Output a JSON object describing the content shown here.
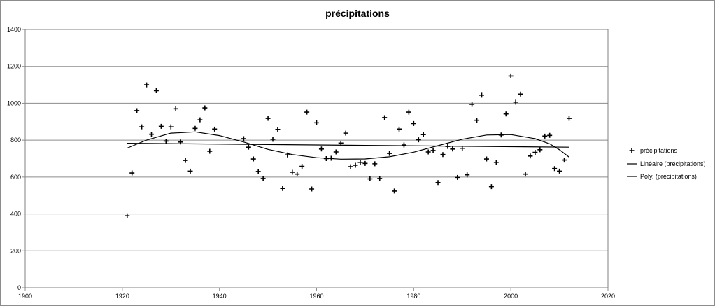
{
  "chart_data": {
    "type": "scatter",
    "title": "précipitations",
    "xlim": [
      1900,
      2020
    ],
    "ylim": [
      0,
      1400
    ],
    "x_ticks": [
      1900,
      1920,
      1940,
      1960,
      1980,
      2000,
      2020
    ],
    "y_ticks": [
      0,
      200,
      400,
      600,
      800,
      1000,
      1200,
      1400
    ],
    "grid": "horizontal",
    "legend_position": "right",
    "marker_color": "#000000",
    "line_color": "#000000",
    "series": [
      {
        "name": "précipitations",
        "kind": "scatter",
        "marker": "cross",
        "points": [
          [
            1921,
            390
          ],
          [
            1922,
            622
          ],
          [
            1923,
            960
          ],
          [
            1924,
            872
          ],
          [
            1925,
            1100
          ],
          [
            1926,
            832
          ],
          [
            1927,
            1068
          ],
          [
            1928,
            875
          ],
          [
            1929,
            795
          ],
          [
            1930,
            872
          ],
          [
            1931,
            970
          ],
          [
            1932,
            790
          ],
          [
            1933,
            690
          ],
          [
            1934,
            632
          ],
          [
            1935,
            864
          ],
          [
            1936,
            910
          ],
          [
            1937,
            975
          ],
          [
            1938,
            740
          ],
          [
            1939,
            860
          ],
          [
            1945,
            808
          ],
          [
            1946,
            762
          ],
          [
            1947,
            698
          ],
          [
            1948,
            630
          ],
          [
            1949,
            592
          ],
          [
            1950,
            918
          ],
          [
            1951,
            805
          ],
          [
            1952,
            858
          ],
          [
            1953,
            538
          ],
          [
            1954,
            720
          ],
          [
            1955,
            626
          ],
          [
            1956,
            616
          ],
          [
            1957,
            658
          ],
          [
            1958,
            952
          ],
          [
            1959,
            535
          ],
          [
            1960,
            894
          ],
          [
            1961,
            752
          ],
          [
            1962,
            700
          ],
          [
            1963,
            702
          ],
          [
            1964,
            736
          ],
          [
            1965,
            784
          ],
          [
            1966,
            838
          ],
          [
            1967,
            656
          ],
          [
            1968,
            664
          ],
          [
            1969,
            680
          ],
          [
            1970,
            674
          ],
          [
            1971,
            590
          ],
          [
            1972,
            672
          ],
          [
            1973,
            592
          ],
          [
            1974,
            922
          ],
          [
            1975,
            728
          ],
          [
            1976,
            524
          ],
          [
            1977,
            860
          ],
          [
            1978,
            774
          ],
          [
            1979,
            952
          ],
          [
            1980,
            890
          ],
          [
            1981,
            802
          ],
          [
            1982,
            830
          ],
          [
            1983,
            736
          ],
          [
            1984,
            744
          ],
          [
            1985,
            570
          ],
          [
            1986,
            722
          ],
          [
            1987,
            766
          ],
          [
            1988,
            752
          ],
          [
            1989,
            598
          ],
          [
            1990,
            756
          ],
          [
            1991,
            612
          ],
          [
            1992,
            994
          ],
          [
            1993,
            908
          ],
          [
            1994,
            1044
          ],
          [
            1995,
            698
          ],
          [
            1996,
            548
          ],
          [
            1997,
            680
          ],
          [
            1998,
            828
          ],
          [
            1999,
            942
          ],
          [
            2000,
            1148
          ],
          [
            2001,
            1006
          ],
          [
            2002,
            1050
          ],
          [
            2003,
            616
          ],
          [
            2004,
            714
          ],
          [
            2005,
            734
          ],
          [
            2006,
            748
          ],
          [
            2007,
            822
          ],
          [
            2008,
            826
          ],
          [
            2009,
            646
          ],
          [
            2010,
            632
          ],
          [
            2011,
            692
          ],
          [
            2012,
            918
          ]
        ]
      },
      {
        "name": "Linéaire (précipitations)",
        "kind": "line",
        "points": [
          [
            1921,
            783
          ],
          [
            2012,
            762
          ]
        ]
      },
      {
        "name": "Poly. (précipitations)",
        "kind": "line",
        "points": [
          [
            1921,
            757
          ],
          [
            1925,
            800
          ],
          [
            1930,
            838
          ],
          [
            1935,
            845
          ],
          [
            1940,
            825
          ],
          [
            1945,
            790
          ],
          [
            1950,
            750
          ],
          [
            1955,
            722
          ],
          [
            1960,
            705
          ],
          [
            1965,
            697
          ],
          [
            1970,
            698
          ],
          [
            1975,
            710
          ],
          [
            1980,
            735
          ],
          [
            1985,
            770
          ],
          [
            1990,
            805
          ],
          [
            1995,
            828
          ],
          [
            2000,
            830
          ],
          [
            2005,
            808
          ],
          [
            2008,
            780
          ],
          [
            2010,
            748
          ],
          [
            2012,
            708
          ]
        ]
      }
    ]
  }
}
